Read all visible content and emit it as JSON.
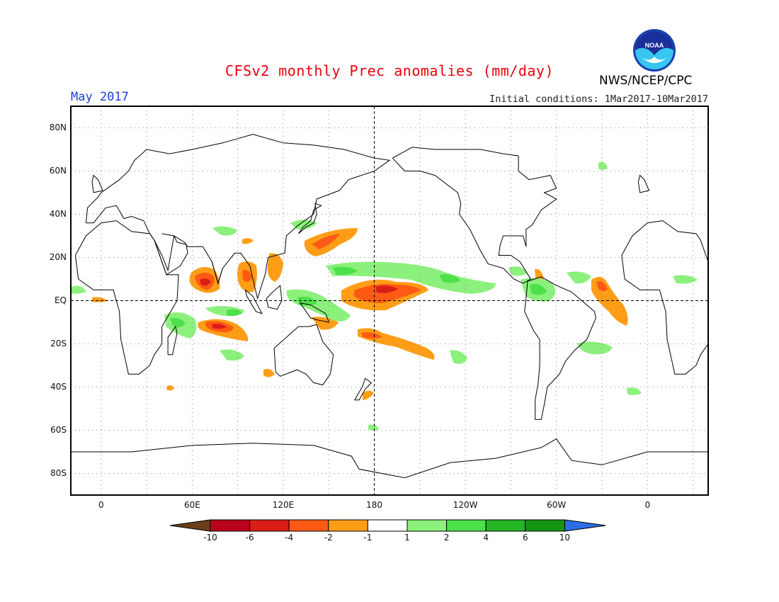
{
  "header": {
    "title": "CFSv2 monthly Prec anomalies (mm/day)",
    "month": "May 2017",
    "initial_conditions": "Initial conditions: 1Mar2017-10Mar2017",
    "agency": "NWS/NCEP/CPC",
    "logo_text": "NOAA"
  },
  "axes": {
    "y_labels": [
      "80N",
      "60N",
      "40N",
      "20N",
      "EQ",
      "20S",
      "40S",
      "60S",
      "80S"
    ],
    "x_labels": [
      "0",
      "60E",
      "120E",
      "180",
      "120W",
      "60W",
      "0"
    ]
  },
  "colorbar": {
    "labels": [
      "-10",
      "-6",
      "-4",
      "-2",
      "-1",
      "1",
      "2",
      "4",
      "6",
      "10"
    ],
    "colors": [
      "#6b3d1a",
      "#b8001c",
      "#d81e16",
      "#ff5a14",
      "#ff9d17",
      "#ffffff",
      "#8cf07c",
      "#4ee04a",
      "#24b424",
      "#149614",
      "#2c6ee8"
    ]
  },
  "map": {
    "anomaly_regions_dry": [
      "Arabian Sea",
      "Bay of Bengal",
      "western subtropical Pacific",
      "central equatorial Pacific",
      "southern Indian Ocean",
      "South Pacific Convergence Zone",
      "northeast Brazil"
    ],
    "anomaly_regions_wet": [
      "eastern equatorial Indian Ocean",
      "Maritime Continent",
      "tropical North Pacific",
      "equatorial Atlantic",
      "southern Brazil",
      "East Africa"
    ]
  }
}
